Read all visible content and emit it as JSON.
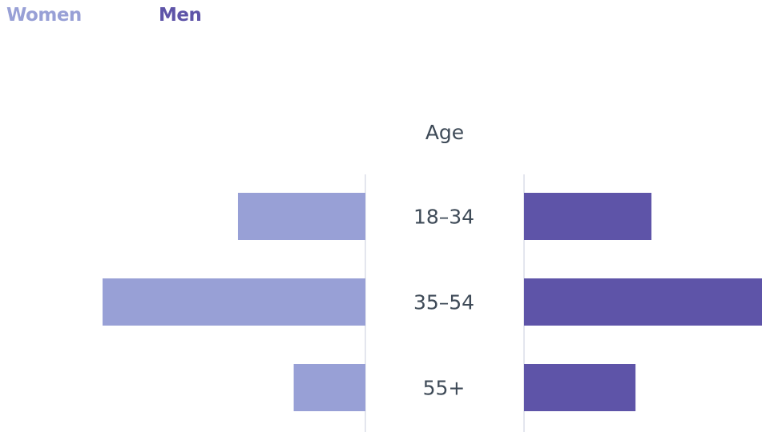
{
  "chart_data": {
    "type": "bar",
    "categories": [
      "18–34",
      "35–54",
      "55+"
    ],
    "category_axis_title": "Age",
    "series": [
      {
        "name": "Women",
        "values": [
          16,
          33,
          9
        ],
        "color": "#98a0d6",
        "direction": "left"
      },
      {
        "name": "Men",
        "values": [
          16,
          30,
          14
        ],
        "color": "#5e54a8",
        "direction": "right"
      }
    ],
    "xlim": [
      0,
      33
    ],
    "legend_position": "top-left",
    "grid": false
  }
}
